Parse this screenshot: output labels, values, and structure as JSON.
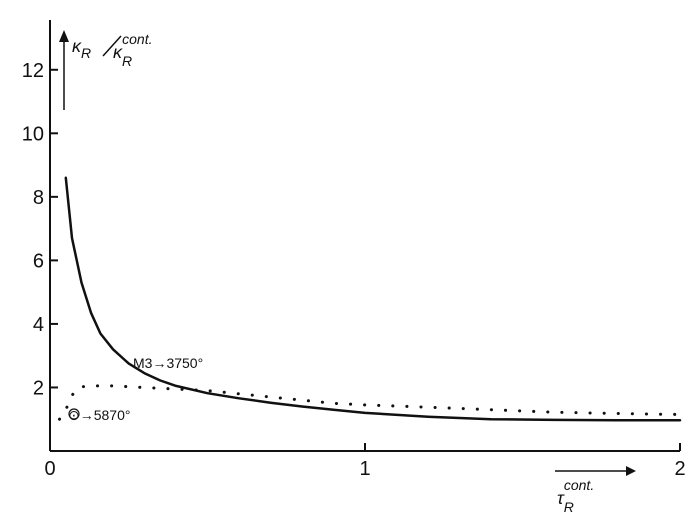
{
  "chart_data": {
    "type": "line",
    "xlabel": "τR cont.",
    "ylabel": "κR/κR cont.",
    "xlabel_main": "τ",
    "xlabel_sub": "R",
    "xlabel_sup": "cont.",
    "ylabel_num": "κ",
    "ylabel_num_sub": "R",
    "ylabel_den": "κ",
    "ylabel_den_sub": "R",
    "ylabel_den_sup": "cont.",
    "xlim": [
      0,
      2
    ],
    "ylim": [
      0,
      13
    ],
    "x_ticks": [
      0,
      1,
      2
    ],
    "x_tick_labels": [
      "0",
      "1",
      "2"
    ],
    "y_ticks": [
      2,
      4,
      6,
      8,
      10,
      12
    ],
    "y_tick_labels": [
      "2",
      "4",
      "6",
      "8",
      "10",
      "12"
    ],
    "grid": false,
    "legend": "none",
    "series": [
      {
        "style": "solid",
        "color": "#111111",
        "label": "M3→3750°",
        "x": [
          0.05,
          0.07,
          0.1,
          0.13,
          0.16,
          0.2,
          0.25,
          0.3,
          0.35,
          0.4,
          0.5,
          0.6,
          0.7,
          0.8,
          0.9,
          1.0,
          1.2,
          1.4,
          1.6,
          1.8,
          2.0
        ],
        "y": [
          8.6,
          6.7,
          5.3,
          4.35,
          3.7,
          3.2,
          2.75,
          2.45,
          2.22,
          2.05,
          1.82,
          1.66,
          1.52,
          1.4,
          1.3,
          1.2,
          1.08,
          1.0,
          0.98,
          0.97,
          0.97
        ]
      },
      {
        "style": "dotted",
        "color": "#111111",
        "label": "⊙→5870°",
        "x": [
          0.03,
          0.05,
          0.07,
          0.09,
          0.12,
          0.2,
          0.3,
          0.5,
          0.7,
          0.9,
          1.0,
          1.2,
          1.4,
          1.6,
          1.8,
          2.0
        ],
        "y": [
          1.0,
          1.3,
          1.75,
          2.0,
          2.05,
          2.05,
          2.0,
          1.9,
          1.7,
          1.5,
          1.45,
          1.38,
          1.3,
          1.22,
          1.18,
          1.15
        ]
      }
    ]
  }
}
